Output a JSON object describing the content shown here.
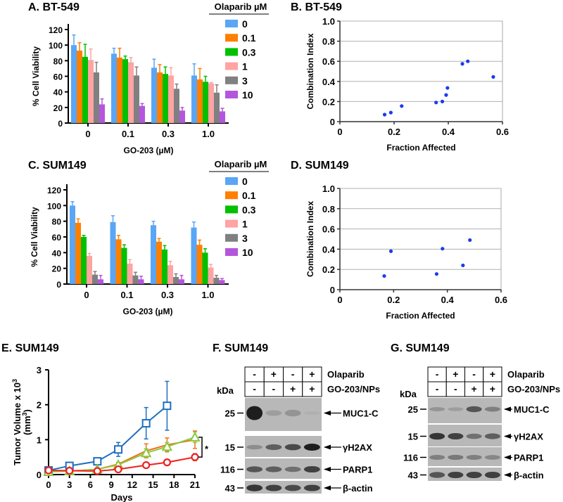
{
  "chart_data": [
    {
      "id": "A",
      "type": "bar",
      "title": "A.  BT-549",
      "xlabel": "GO-203 (µM)",
      "ylabel": "% Cell Viability",
      "ylim": [
        0,
        120
      ],
      "yticks": [
        "0",
        "20",
        "40",
        "60",
        "80",
        "100",
        "120"
      ],
      "categories": [
        "0",
        "0.1",
        "0.3",
        "1.0"
      ],
      "legend_title": "Olaparib µM",
      "series": [
        {
          "name": "0",
          "color": "#5aa6f5",
          "values": [
            100,
            89,
            71,
            61
          ],
          "errors": [
            13,
            7,
            11,
            15
          ]
        },
        {
          "name": "0.1",
          "color": "#ff7f00",
          "values": [
            93,
            84,
            65,
            56
          ],
          "errors": [
            10,
            12,
            10,
            14
          ]
        },
        {
          "name": "0.3",
          "color": "#00c000",
          "values": [
            85,
            82,
            63,
            53
          ],
          "errors": [
            16,
            4,
            9,
            7
          ]
        },
        {
          "name": "1",
          "color": "#ffa3a3",
          "values": [
            81,
            78,
            61,
            51
          ],
          "errors": [
            14,
            6,
            10,
            1
          ]
        },
        {
          "name": "3",
          "color": "#808080",
          "values": [
            65,
            61,
            44,
            39
          ],
          "errors": [
            13,
            11,
            6,
            10
          ]
        },
        {
          "name": "10",
          "color": "#b456dc",
          "values": [
            24,
            22,
            16,
            15
          ],
          "errors": [
            7,
            3,
            4,
            4
          ]
        }
      ]
    },
    {
      "id": "B",
      "type": "scatter",
      "title": "B.  BT-549",
      "xlabel": "Fraction Affected",
      "ylabel": "Combination Index",
      "xlim": [
        0,
        0.6
      ],
      "ylim": [
        0,
        1.0
      ],
      "xticks": [
        "0",
        "0.2",
        "0.4",
        "0.6"
      ],
      "yticks": [
        "0",
        "0.2",
        "0.4",
        "0.6",
        "0.8",
        "1.0"
      ],
      "grid": true,
      "color": "#1a3cf0",
      "points": [
        [
          0.165,
          0.07
        ],
        [
          0.188,
          0.09
        ],
        [
          0.228,
          0.155
        ],
        [
          0.355,
          0.19
        ],
        [
          0.378,
          0.2
        ],
        [
          0.392,
          0.265
        ],
        [
          0.397,
          0.335
        ],
        [
          0.452,
          0.575
        ],
        [
          0.472,
          0.6
        ],
        [
          0.566,
          0.445
        ]
      ]
    },
    {
      "id": "C",
      "type": "bar",
      "title": "C.  SUM149",
      "xlabel": "GO-203 (µM)",
      "ylabel": "% Cell Viability",
      "ylim": [
        0,
        120
      ],
      "yticks": [
        "0",
        "20",
        "40",
        "60",
        "80",
        "100",
        "120"
      ],
      "categories": [
        "0",
        "0.1",
        "0.3",
        "1.0"
      ],
      "legend_title": "Olaparib µM",
      "series": [
        {
          "name": "0",
          "color": "#5aa6f5",
          "values": [
            100,
            79,
            75,
            72
          ],
          "errors": [
            5,
            8,
            5,
            7
          ]
        },
        {
          "name": "0.1",
          "color": "#ff7f00",
          "values": [
            78,
            57,
            54,
            50
          ],
          "errors": [
            5,
            5,
            4,
            6
          ]
        },
        {
          "name": "0.3",
          "color": "#00c000",
          "values": [
            60,
            46,
            44,
            40
          ],
          "errors": [
            2,
            4,
            5,
            5
          ]
        },
        {
          "name": "1",
          "color": "#ffa3a3",
          "values": [
            36,
            26,
            24,
            21
          ],
          "errors": [
            3,
            5,
            5,
            4
          ]
        },
        {
          "name": "3",
          "color": "#808080",
          "values": [
            12,
            11,
            9,
            8
          ],
          "errors": [
            4,
            4,
            4,
            3
          ]
        },
        {
          "name": "10",
          "color": "#b456dc",
          "values": [
            6,
            6,
            6,
            5
          ],
          "errors": [
            5,
            4,
            5,
            2
          ]
        }
      ]
    },
    {
      "id": "D",
      "type": "scatter",
      "title": "D.  SUM149",
      "xlabel": "Fraction Affected",
      "ylabel": "Combination Index",
      "xlim": [
        0,
        0.6
      ],
      "ylim": [
        0,
        1.0
      ],
      "xticks": [
        "0",
        "0.2",
        "0.4",
        "0.6"
      ],
      "yticks": [
        "0",
        "0.2",
        "0.4",
        "0.6",
        "0.8",
        "1.0"
      ],
      "grid": true,
      "color": "#1a3cf0",
      "points": [
        [
          0.165,
          0.135
        ],
        [
          0.19,
          0.38
        ],
        [
          0.36,
          0.155
        ],
        [
          0.382,
          0.405
        ],
        [
          0.458,
          0.24
        ],
        [
          0.484,
          0.49
        ]
      ]
    },
    {
      "id": "E",
      "type": "line",
      "title": "E.  SUM149",
      "xlabel": "Days",
      "ylabel_line1": "Tumor Volume x 10",
      "ylabel_sup": "3",
      "ylabel_line2": "(mm",
      "ylabel_line2_sup": "3",
      "ylabel_line2_end": ")",
      "xlim": [
        0,
        21
      ],
      "ylim": [
        0,
        3
      ],
      "xticks": [
        "0",
        "3",
        "6",
        "9",
        "12",
        "15",
        "18",
        "21"
      ],
      "yticks": [
        "0",
        "1",
        "2",
        "3"
      ],
      "annotation": "*",
      "series": [
        {
          "marker": "square",
          "color": "#1f6fc0",
          "x": [
            0,
            3,
            7,
            10,
            14,
            17
          ],
          "y": [
            0.12,
            0.25,
            0.38,
            0.72,
            1.47,
            1.97
          ],
          "err": [
            0.05,
            0.05,
            0.08,
            0.2,
            0.45,
            0.7
          ]
        },
        {
          "marker": "none",
          "color": "#f07020",
          "x": [
            0,
            3,
            7,
            10,
            14,
            17,
            21
          ],
          "y": [
            0.1,
            0.1,
            0.15,
            0.3,
            0.68,
            0.85,
            1.0
          ],
          "err": [
            0.02,
            0.02,
            0.03,
            0.05,
            0.2,
            0.2,
            0.25
          ]
        },
        {
          "marker": "triangle",
          "color": "#8cc83c",
          "x": [
            0,
            3,
            7,
            10,
            14,
            17,
            21
          ],
          "y": [
            0.08,
            0.1,
            0.15,
            0.28,
            0.62,
            0.8,
            1.07
          ],
          "err": [
            0.02,
            0.02,
            0.03,
            0.05,
            0.12,
            0.12,
            0.15
          ]
        },
        {
          "marker": "circle",
          "color": "#f02020",
          "x": [
            0,
            3,
            7,
            10,
            14,
            17,
            21
          ],
          "y": [
            0.12,
            0.11,
            0.1,
            0.15,
            0.27,
            0.35,
            0.5
          ],
          "err": [
            0.02,
            0.02,
            0.02,
            0.03,
            0.04,
            0.05,
            0.1
          ]
        }
      ]
    },
    {
      "id": "F",
      "type": "table",
      "title": "F.  SUM149",
      "kda_label": "kDa",
      "row_labels": [
        "Olaparib",
        "GO-203/NPs"
      ],
      "rows": [
        [
          "-",
          "+",
          "-",
          "+"
        ],
        [
          "-",
          "-",
          "+",
          "+"
        ]
      ],
      "blots": [
        {
          "marker": "25",
          "protein": "MUC1-C",
          "bands": [
            1.0,
            0.25,
            0.35,
            0.05
          ]
        },
        {
          "marker": "15",
          "protein": "γH2AX",
          "bands": [
            0.4,
            0.7,
            0.8,
            1.0
          ]
        },
        {
          "marker": "116",
          "protein": "PARP1",
          "bands": [
            0.75,
            0.7,
            0.6,
            0.85
          ]
        },
        {
          "marker": "43",
          "protein": "β-actin",
          "bands": [
            0.9,
            0.85,
            0.8,
            0.85
          ]
        }
      ]
    },
    {
      "id": "G",
      "type": "table",
      "title": "G.  SUM149",
      "kda_label": "kDa",
      "row_labels": [
        "Olaparib",
        "GO-203/NPs"
      ],
      "rows": [
        [
          "-",
          "+",
          "-",
          "+"
        ],
        [
          "-",
          "-",
          "+",
          "+"
        ]
      ],
      "blots": [
        {
          "marker": "25",
          "protein": "MUC1-C",
          "bands": [
            0.35,
            0.25,
            0.75,
            0.5
          ]
        },
        {
          "marker": "15",
          "protein": "γH2AX",
          "bands": [
            0.9,
            0.85,
            0.6,
            0.7
          ]
        },
        {
          "marker": "116",
          "protein": "PARP1",
          "bands": [
            0.5,
            0.55,
            0.5,
            0.45
          ]
        },
        {
          "marker": "43",
          "protein": "β-actin",
          "bands": [
            0.75,
            0.85,
            0.85,
            0.85
          ]
        }
      ]
    }
  ]
}
